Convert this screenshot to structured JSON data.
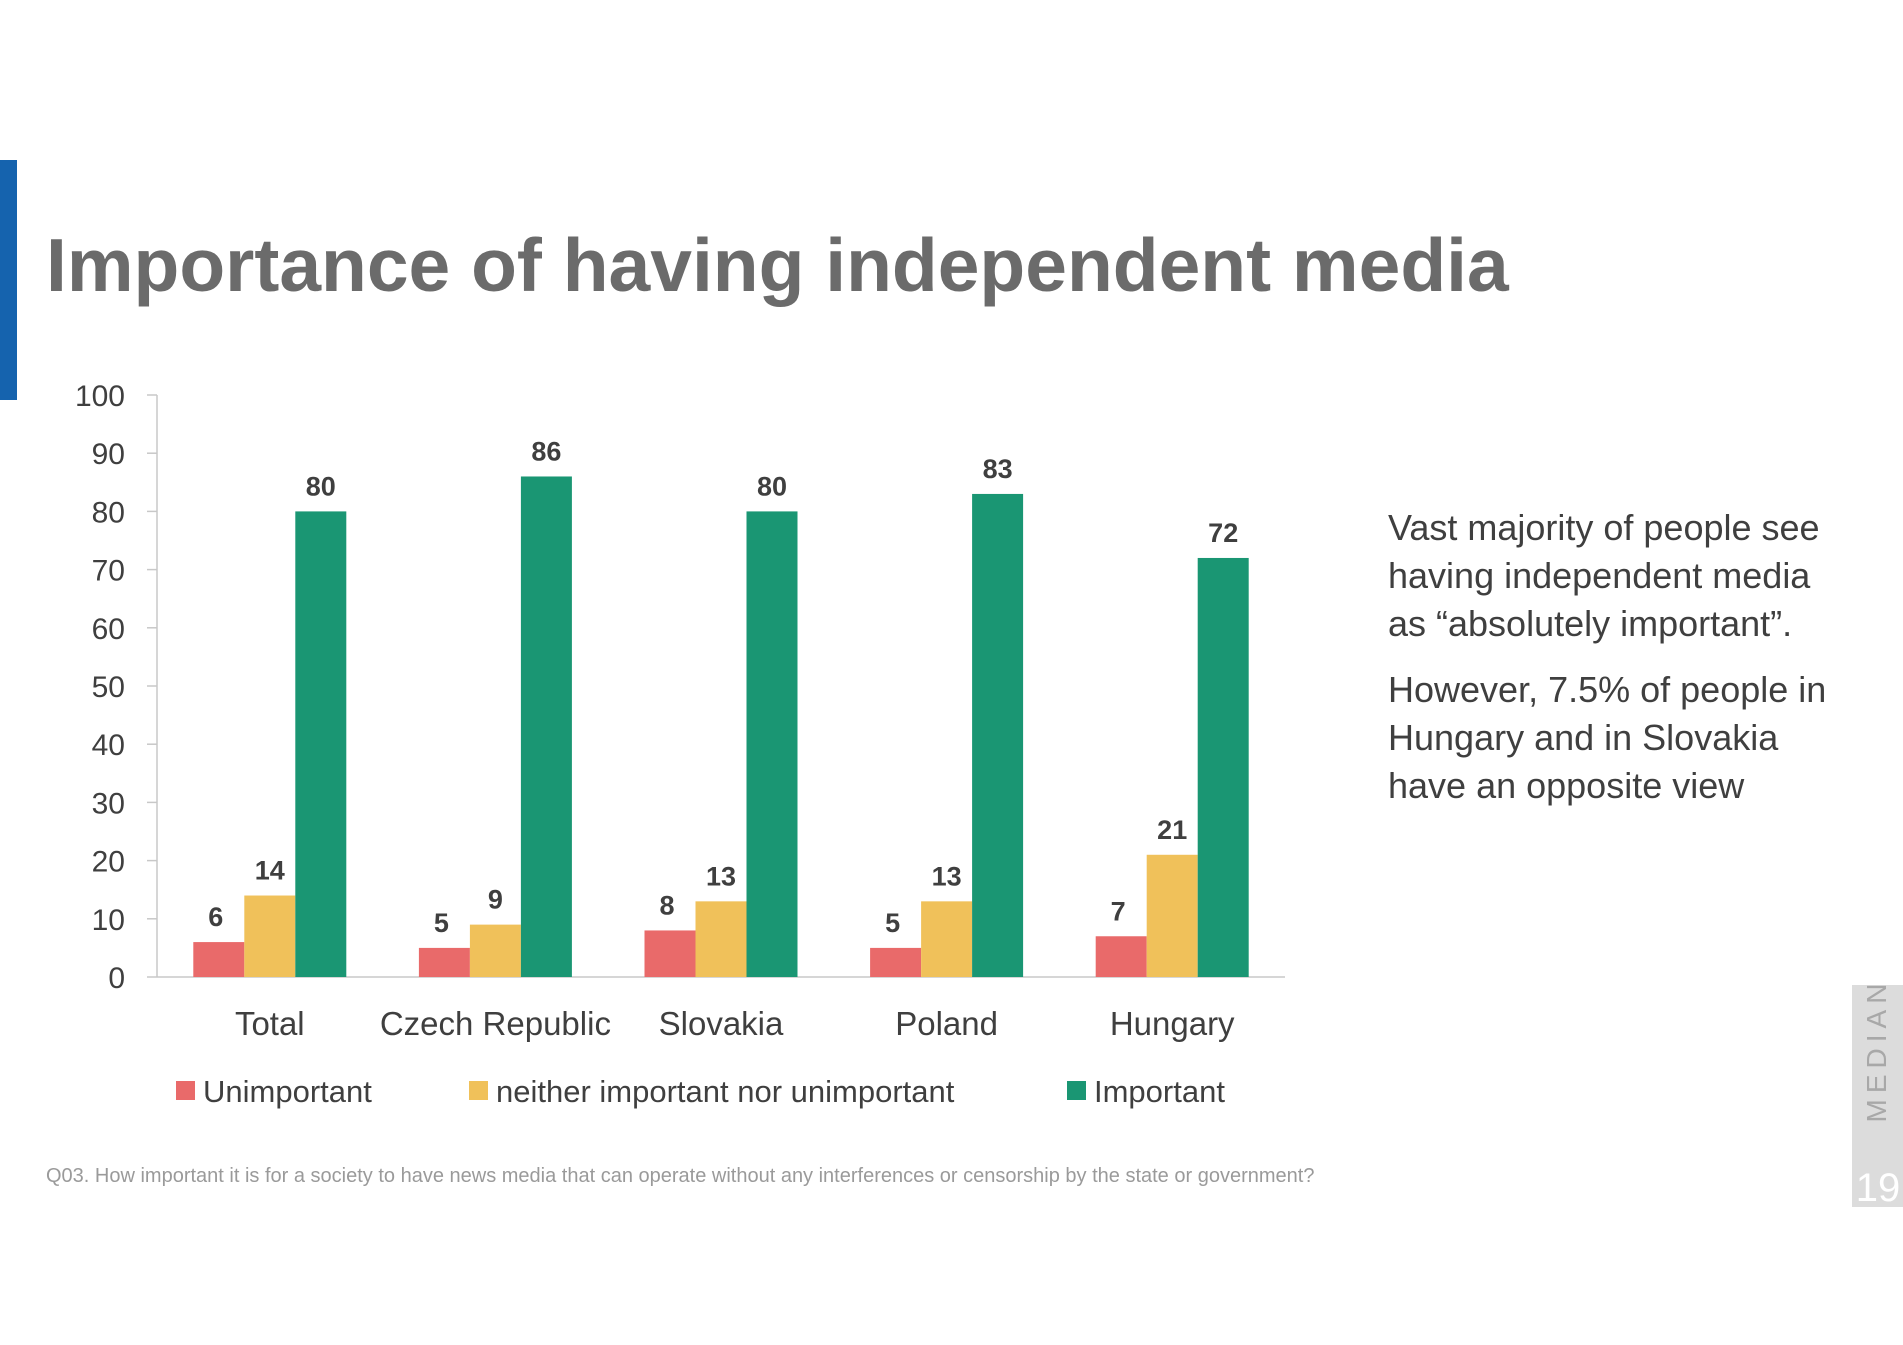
{
  "slide": {
    "title": "Importance of having independent media",
    "commentary": [
      "Vast majority of people see having independent media as “absolutely important”.",
      "However, 7.5% of people in Hungary and in Slovakia have an opposite view"
    ],
    "footnote": "Q03. How important it is for a society to have news media that can operate without any interferences or censorship by the state or government?",
    "brand": "MEDIAN",
    "page_number": "19",
    "accent_color": "#1563ae"
  },
  "chart_data": {
    "type": "bar",
    "title": "",
    "xlabel": "",
    "ylabel": "",
    "categories": [
      "Total",
      "Czech Republic",
      "Slovakia",
      "Poland",
      "Hungary"
    ],
    "series": [
      {
        "name": "Unimportant",
        "color": "#e96a6a",
        "values": [
          6,
          5,
          8,
          5,
          7
        ]
      },
      {
        "name": "neither important nor unimportant",
        "color": "#f0c15a",
        "values": [
          14,
          9,
          13,
          13,
          21
        ]
      },
      {
        "name": "Important",
        "color": "#1a9673",
        "values": [
          80,
          86,
          80,
          83,
          72
        ]
      }
    ],
    "ylim": [
      0,
      100
    ],
    "yticks": [
      0,
      10,
      20,
      30,
      40,
      50,
      60,
      70,
      80,
      90,
      100
    ],
    "grid": false,
    "legend_position": "bottom",
    "data_labels": true
  }
}
